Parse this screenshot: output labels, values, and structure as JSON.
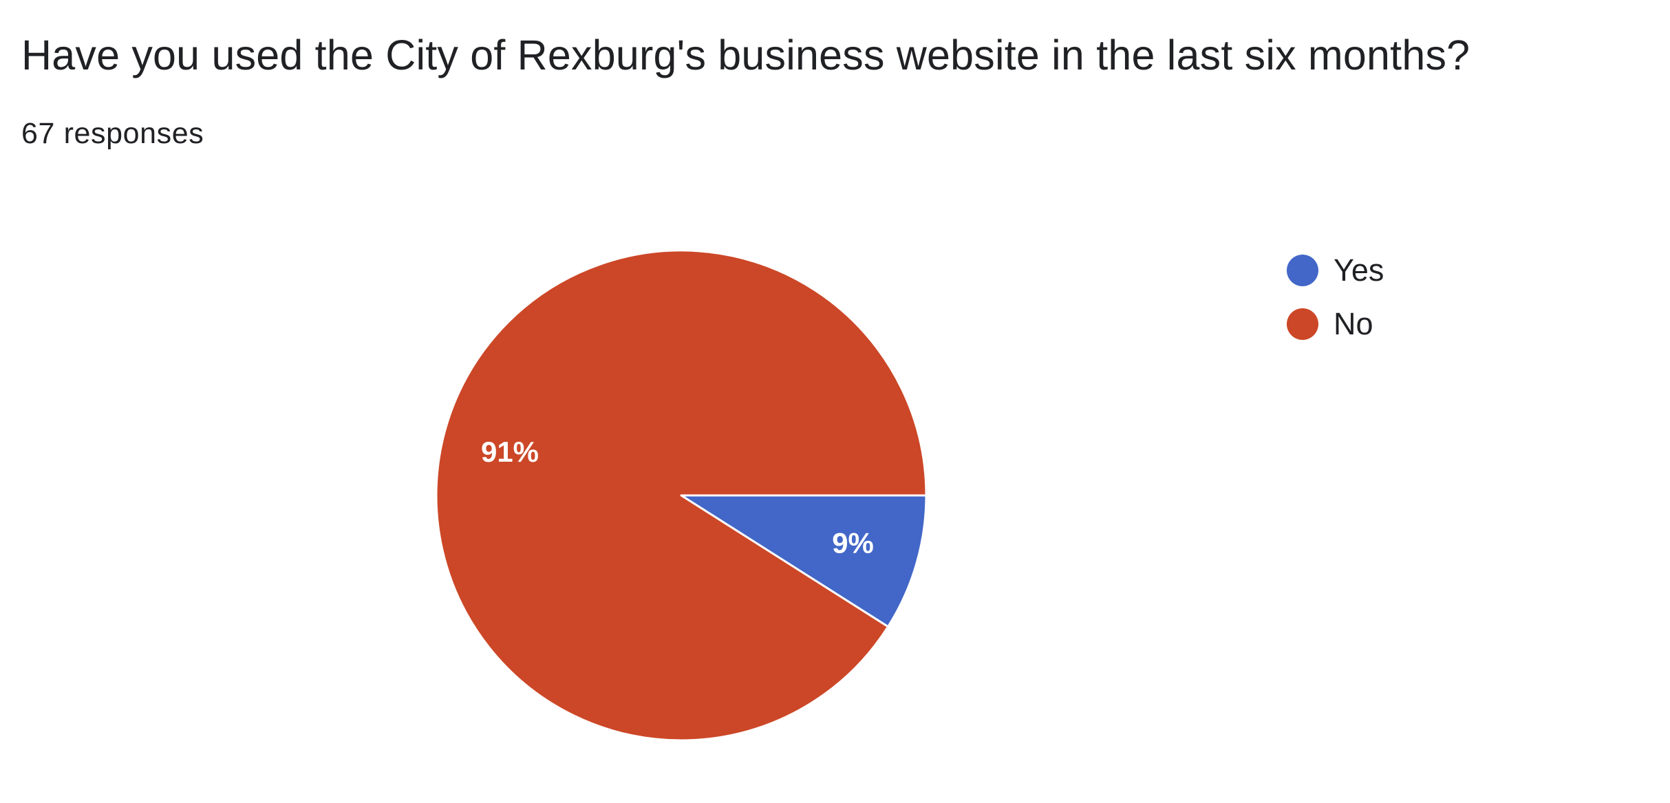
{
  "question": {
    "title": "Have you used the City of Rexburg's business website in the last six months?",
    "responses": "67 responses"
  },
  "chart_data": {
    "type": "pie",
    "title": "",
    "categories": [
      "Yes",
      "No"
    ],
    "values": [
      9,
      91
    ],
    "value_labels": [
      "9%",
      "91%"
    ],
    "colors": [
      "#4267c8",
      "#cc4727"
    ],
    "legend_position": "right",
    "slice_border_color": "#ffffff",
    "label_color": "#ffffff"
  }
}
